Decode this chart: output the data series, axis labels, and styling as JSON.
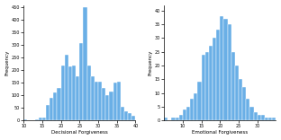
{
  "left": {
    "xlabel": "Decisional Forgiveness",
    "ylabel": "Frequency",
    "bar_color": "#6aafe6",
    "edge_color": "white",
    "xlim": [
      10,
      40
    ],
    "ylim": [
      0,
      460
    ],
    "xticks": [
      10,
      15,
      20,
      25,
      30,
      35,
      40
    ],
    "yticks": [
      0,
      50,
      100,
      150,
      200,
      250,
      300,
      350,
      400,
      450
    ],
    "bar_lefts": [
      10,
      11,
      12,
      13,
      14,
      15,
      16,
      17,
      18,
      19,
      20,
      21,
      22,
      23,
      24,
      25,
      26,
      27,
      28,
      29,
      30,
      31,
      32,
      33,
      34,
      35,
      36,
      37,
      38,
      39
    ],
    "bar_heights": [
      5,
      2,
      2,
      5,
      10,
      10,
      60,
      90,
      110,
      130,
      220,
      260,
      215,
      220,
      175,
      310,
      450,
      220,
      175,
      155,
      155,
      130,
      100,
      115,
      150,
      155,
      55,
      35,
      30,
      20
    ]
  },
  "right": {
    "xlabel": "Emotional Forgiveness",
    "ylabel": "Frequency",
    "bar_color": "#6aafe6",
    "edge_color": "white",
    "xlim": [
      5,
      35
    ],
    "ylim": [
      0,
      42
    ],
    "xticks": [
      10,
      15,
      20,
      25,
      30
    ],
    "yticks": [
      0,
      5,
      10,
      15,
      20,
      25,
      30,
      35,
      40
    ],
    "bar_lefts": [
      5,
      6,
      7,
      8,
      9,
      10,
      11,
      12,
      13,
      14,
      15,
      16,
      17,
      18,
      19,
      20,
      21,
      22,
      23,
      24,
      25,
      26,
      27,
      28,
      29,
      30,
      31,
      32,
      33,
      34
    ],
    "bar_heights": [
      1,
      0,
      1,
      1,
      2,
      4,
      5,
      8,
      10,
      14,
      24,
      25,
      27,
      30,
      33,
      38,
      37,
      35,
      25,
      20,
      15,
      12,
      8,
      5,
      3,
      2,
      2,
      1,
      1,
      1
    ]
  }
}
